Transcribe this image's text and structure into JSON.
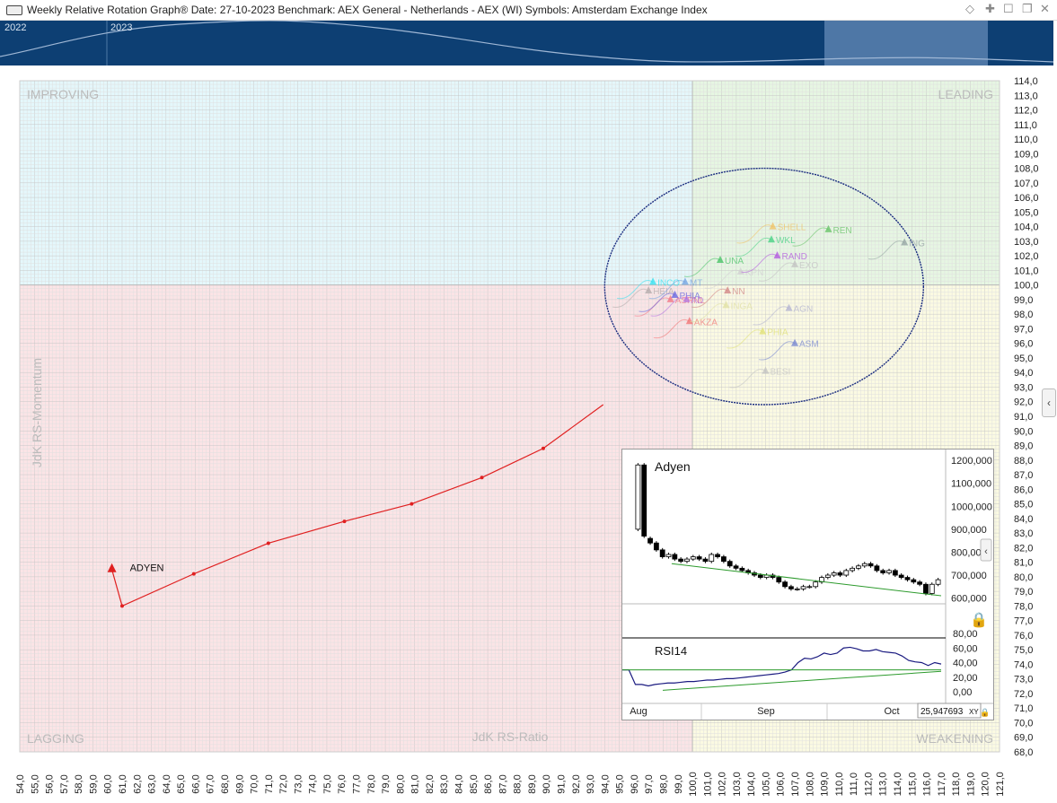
{
  "window": {
    "title": "Weekly Relative Rotation Graph®    Date: 27-10-2023  Benchmark: AEX General - Netherlands - AEX (WI)  Symbols: Amsterdam Exchange Index"
  },
  "overview": {
    "year_labels": [
      "2022",
      "2023"
    ]
  },
  "quadrants": {
    "improving": "IMPROVING",
    "leading": "LEADING",
    "lagging": "LAGGING",
    "weakening": "WEAKENING"
  },
  "chart_data": {
    "type": "scatter",
    "title": "",
    "xlabel": "JdK RS-Ratio",
    "ylabel": "JdK RS-Momentum",
    "xlim": [
      54,
      121
    ],
    "ylim": [
      68,
      114
    ],
    "center": [
      100,
      100
    ],
    "grid": true,
    "x_ticks": [
      "54,0",
      "55,0",
      "56,0",
      "57,0",
      "58,0",
      "59,0",
      "60,0",
      "61,0",
      "62,0",
      "63,0",
      "64,0",
      "65,0",
      "66,0",
      "67,0",
      "68,0",
      "69,0",
      "70,0",
      "71,0",
      "72,0",
      "73,0",
      "74,0",
      "75,0",
      "76,0",
      "77,0",
      "78,0",
      "79,0",
      "80,0",
      "81,0",
      "82,0",
      "83,0",
      "84,0",
      "85,0",
      "86,0",
      "87,0",
      "88,0",
      "89,0",
      "90,0",
      "91,0",
      "92,0",
      "93,0",
      "94,0",
      "95,0",
      "96,0",
      "97,0",
      "98,0",
      "99,0",
      "100,0",
      "101,0",
      "102,0",
      "103,0",
      "104,0",
      "105,0",
      "106,0",
      "107,0",
      "108,0",
      "109,0",
      "110,0",
      "111,0",
      "112,0",
      "113,0",
      "114,0",
      "115,0",
      "116,0",
      "117,0",
      "118,0",
      "119,0",
      "120,0",
      "121,0"
    ],
    "y_ticks": [
      "114,0",
      "113,0",
      "112,0",
      "111,0",
      "110,0",
      "109,0",
      "108,0",
      "107,0",
      "106,0",
      "105,0",
      "104,0",
      "103,0",
      "102,0",
      "101,0",
      "100,0",
      "99,0",
      "98,0",
      "97,0",
      "96,0",
      "95,0",
      "94,0",
      "93,0",
      "92,0",
      "91,0",
      "90,0",
      "89,0",
      "88,0",
      "87,0",
      "86,0",
      "85,0",
      "84,0",
      "83,0",
      "82,0",
      "81,0",
      "80,0",
      "79,0",
      "78,0",
      "77,0",
      "76,0",
      "75,0",
      "74,0",
      "73,0",
      "72,0",
      "71,0",
      "70,0",
      "69,0",
      "68,0"
    ],
    "highlight": {
      "name": "ADYEN",
      "color": "#e02020",
      "tail": [
        [
          93.9,
          91.8
        ],
        [
          89.8,
          88.8
        ],
        [
          85.6,
          86.8
        ],
        [
          80.8,
          85.0
        ],
        [
          76.2,
          83.8
        ],
        [
          71.0,
          82.3
        ],
        [
          65.9,
          80.2
        ],
        [
          61.0,
          78.0
        ],
        [
          60.3,
          80.5
        ]
      ]
    },
    "symbols": [
      {
        "name": "INCO",
        "x": 97.3,
        "y": 100.2,
        "color": "#2ee0f0"
      },
      {
        "name": "HEIA",
        "x": 97.0,
        "y": 99.6,
        "color": "#b0a8a8"
      },
      {
        "name": "MT",
        "x": 99.5,
        "y": 100.2,
        "color": "#6fa0e0"
      },
      {
        "name": "ASRNL",
        "x": 98.5,
        "y": 99.0,
        "color": "#f07080"
      },
      {
        "name": "PHIA",
        "x": 98.8,
        "y": 99.3,
        "color": "#6060e0"
      },
      {
        "name": "AD",
        "x": 99.6,
        "y": 99.0,
        "color": "#b070e0"
      },
      {
        "name": "AKZA",
        "x": 99.8,
        "y": 97.5,
        "color": "#f07070"
      },
      {
        "name": "UNA",
        "x": 101.9,
        "y": 101.7,
        "color": "#40c060"
      },
      {
        "name": "KPN",
        "x": 103.3,
        "y": 100.9,
        "color": "#d0d0d0"
      },
      {
        "name": "NN",
        "x": 102.4,
        "y": 99.6,
        "color": "#d08080"
      },
      {
        "name": "INGA",
        "x": 102.3,
        "y": 98.6,
        "color": "#e0e0a0"
      },
      {
        "name": "WKL",
        "x": 105.4,
        "y": 103.1,
        "color": "#40d080"
      },
      {
        "name": "SHELL",
        "x": 105.5,
        "y": 104.0,
        "color": "#f0c060"
      },
      {
        "name": "RAND",
        "x": 105.8,
        "y": 102.0,
        "color": "#b050e0"
      },
      {
        "name": "EXO",
        "x": 107.0,
        "y": 101.4,
        "color": "#c0c0c0"
      },
      {
        "name": "REN",
        "x": 109.3,
        "y": 103.8,
        "color": "#60c060"
      },
      {
        "name": "ING",
        "x": 114.5,
        "y": 102.9,
        "color": "#90a0a0"
      },
      {
        "name": "AGN",
        "x": 106.6,
        "y": 98.4,
        "color": "#b0b0d0"
      },
      {
        "name": "PHIA",
        "x": 104.8,
        "y": 96.8,
        "color": "#e0e070"
      },
      {
        "name": "ASM",
        "x": 107.0,
        "y": 96.0,
        "color": "#7080d0"
      },
      {
        "name": "BESI",
        "x": 105.0,
        "y": 94.1,
        "color": "#c0c0c0"
      }
    ]
  },
  "inset": {
    "price_title": "Adyen",
    "price_ticks": [
      "1200,000",
      "1100,000",
      "1000,000",
      "900,000",
      "800,000",
      "700,000",
      "600,000"
    ],
    "rsi_title": "RSI14",
    "rsi_ticks": [
      "80,00",
      "60,00",
      "40,00",
      "20,00",
      "0,00"
    ],
    "months": [
      "Aug",
      "Sep",
      "Oct"
    ],
    "readout": "25,947693",
    "xy_label": "XY",
    "price": {
      "o": [
        900,
        1180,
        860,
        840,
        810,
        780,
        790,
        770,
        760,
        770,
        780,
        770,
        760,
        790,
        780,
        760,
        740,
        730,
        720,
        710,
        700,
        690,
        700,
        690,
        670,
        650,
        640,
        640,
        650,
        650,
        670,
        690,
        700,
        710,
        700,
        720,
        730,
        740,
        750,
        740,
        720,
        710,
        720,
        700,
        690,
        680,
        670,
        660,
        620,
        660
      ],
      "c": [
        1180,
        870,
        840,
        810,
        780,
        790,
        770,
        760,
        770,
        780,
        770,
        760,
        790,
        780,
        760,
        740,
        730,
        720,
        710,
        700,
        690,
        700,
        690,
        670,
        650,
        640,
        640,
        650,
        650,
        670,
        690,
        700,
        710,
        700,
        720,
        730,
        740,
        750,
        740,
        720,
        710,
        720,
        700,
        690,
        680,
        670,
        660,
        620,
        660,
        680
      ]
    },
    "rsi": [
      30,
      30,
      10,
      10,
      8,
      10,
      11,
      12,
      12,
      13,
      14,
      14,
      15,
      16,
      16,
      17,
      18,
      18,
      19,
      20,
      21,
      22,
      23,
      24,
      25,
      27,
      30,
      40,
      46,
      45,
      48,
      53,
      51,
      53,
      60,
      61,
      59,
      56,
      56,
      58,
      55,
      54,
      53,
      49,
      43,
      41,
      40,
      36,
      40,
      38
    ]
  }
}
